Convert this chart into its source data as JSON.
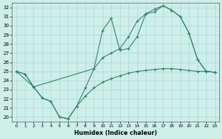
{
  "xlabel": "Humidex (Indice chaleur)",
  "xlim": [
    -0.5,
    23.5
  ],
  "ylim": [
    19.5,
    32.5
  ],
  "xticks": [
    0,
    1,
    2,
    3,
    4,
    5,
    6,
    7,
    8,
    9,
    10,
    11,
    12,
    13,
    14,
    15,
    16,
    17,
    18,
    19,
    20,
    21,
    22,
    23
  ],
  "yticks": [
    20,
    21,
    22,
    23,
    24,
    25,
    26,
    27,
    28,
    29,
    30,
    31,
    32
  ],
  "line_color": "#2e7d72",
  "bg_color": "#ceeee8",
  "grid_color": "#a8d8d0",
  "line1_x": [
    0,
    1,
    2,
    3,
    4,
    5,
    6,
    7,
    8,
    9,
    10,
    11,
    12,
    13,
    14,
    15,
    16,
    17,
    18,
    19,
    20,
    21,
    22,
    23
  ],
  "line1_y": [
    25.0,
    24.7,
    23.3,
    22.1,
    21.7,
    20.0,
    19.8,
    21.2,
    22.3,
    23.2,
    23.8,
    24.2,
    24.5,
    24.8,
    25.0,
    25.1,
    25.2,
    25.3,
    25.3,
    25.2,
    25.1,
    25.0,
    25.0,
    24.9
  ],
  "line2_x": [
    0,
    1,
    2,
    3,
    4,
    5,
    6,
    7,
    8,
    9,
    10,
    11,
    12,
    13,
    14,
    15,
    16,
    17,
    18,
    19,
    20,
    21,
    22,
    23
  ],
  "line2_y": [
    25.0,
    24.7,
    23.3,
    22.1,
    21.7,
    20.0,
    19.8,
    21.2,
    23.2,
    25.3,
    26.5,
    27.0,
    27.5,
    28.8,
    30.5,
    31.3,
    31.5,
    32.2,
    31.7,
    31.0,
    29.2,
    26.3,
    25.0,
    24.9
  ],
  "line3_x": [
    0,
    2,
    9,
    10,
    11,
    12,
    13,
    14,
    15,
    16,
    17,
    18,
    19,
    20,
    21,
    22,
    23
  ],
  "line3_y": [
    25.0,
    23.3,
    25.3,
    29.5,
    30.8,
    27.3,
    27.5,
    28.8,
    31.3,
    31.8,
    32.2,
    31.7,
    31.0,
    29.2,
    26.3,
    25.0,
    24.9
  ]
}
